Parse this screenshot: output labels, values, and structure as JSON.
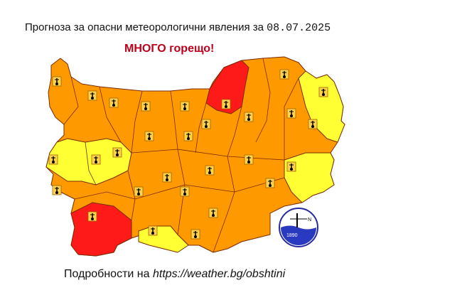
{
  "header": {
    "title": "Прогноза за опасни метеорологични явления за",
    "date": "08.07.2025"
  },
  "warning": {
    "text": "МНОГО горещо!"
  },
  "footer": {
    "text": "Подробности на",
    "link": "https://weather.bg/obshtini"
  },
  "logo": {
    "year": "1890",
    "compass": "N"
  },
  "colors": {
    "orange": "#ff9900",
    "yellow": "#ffff33",
    "red": "#ff1a1a",
    "border": "#7a2a00"
  },
  "legend_icon": "thermometer-icon"
}
